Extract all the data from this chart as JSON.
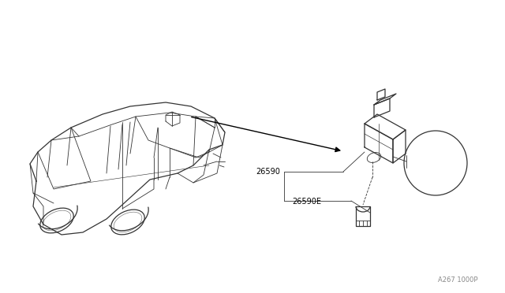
{
  "background_color": "#ffffff",
  "figsize": [
    6.4,
    3.72
  ],
  "dpi": 100,
  "line_color": "#333333",
  "line_color_light": "#777777",
  "lw_main": 0.9,
  "lw_thin": 0.6,
  "part_label_26590": "26590",
  "part_label_26590E": "26590E",
  "diagram_code": "A267 1000P",
  "label_fontsize": 7,
  "code_fontsize": 6
}
